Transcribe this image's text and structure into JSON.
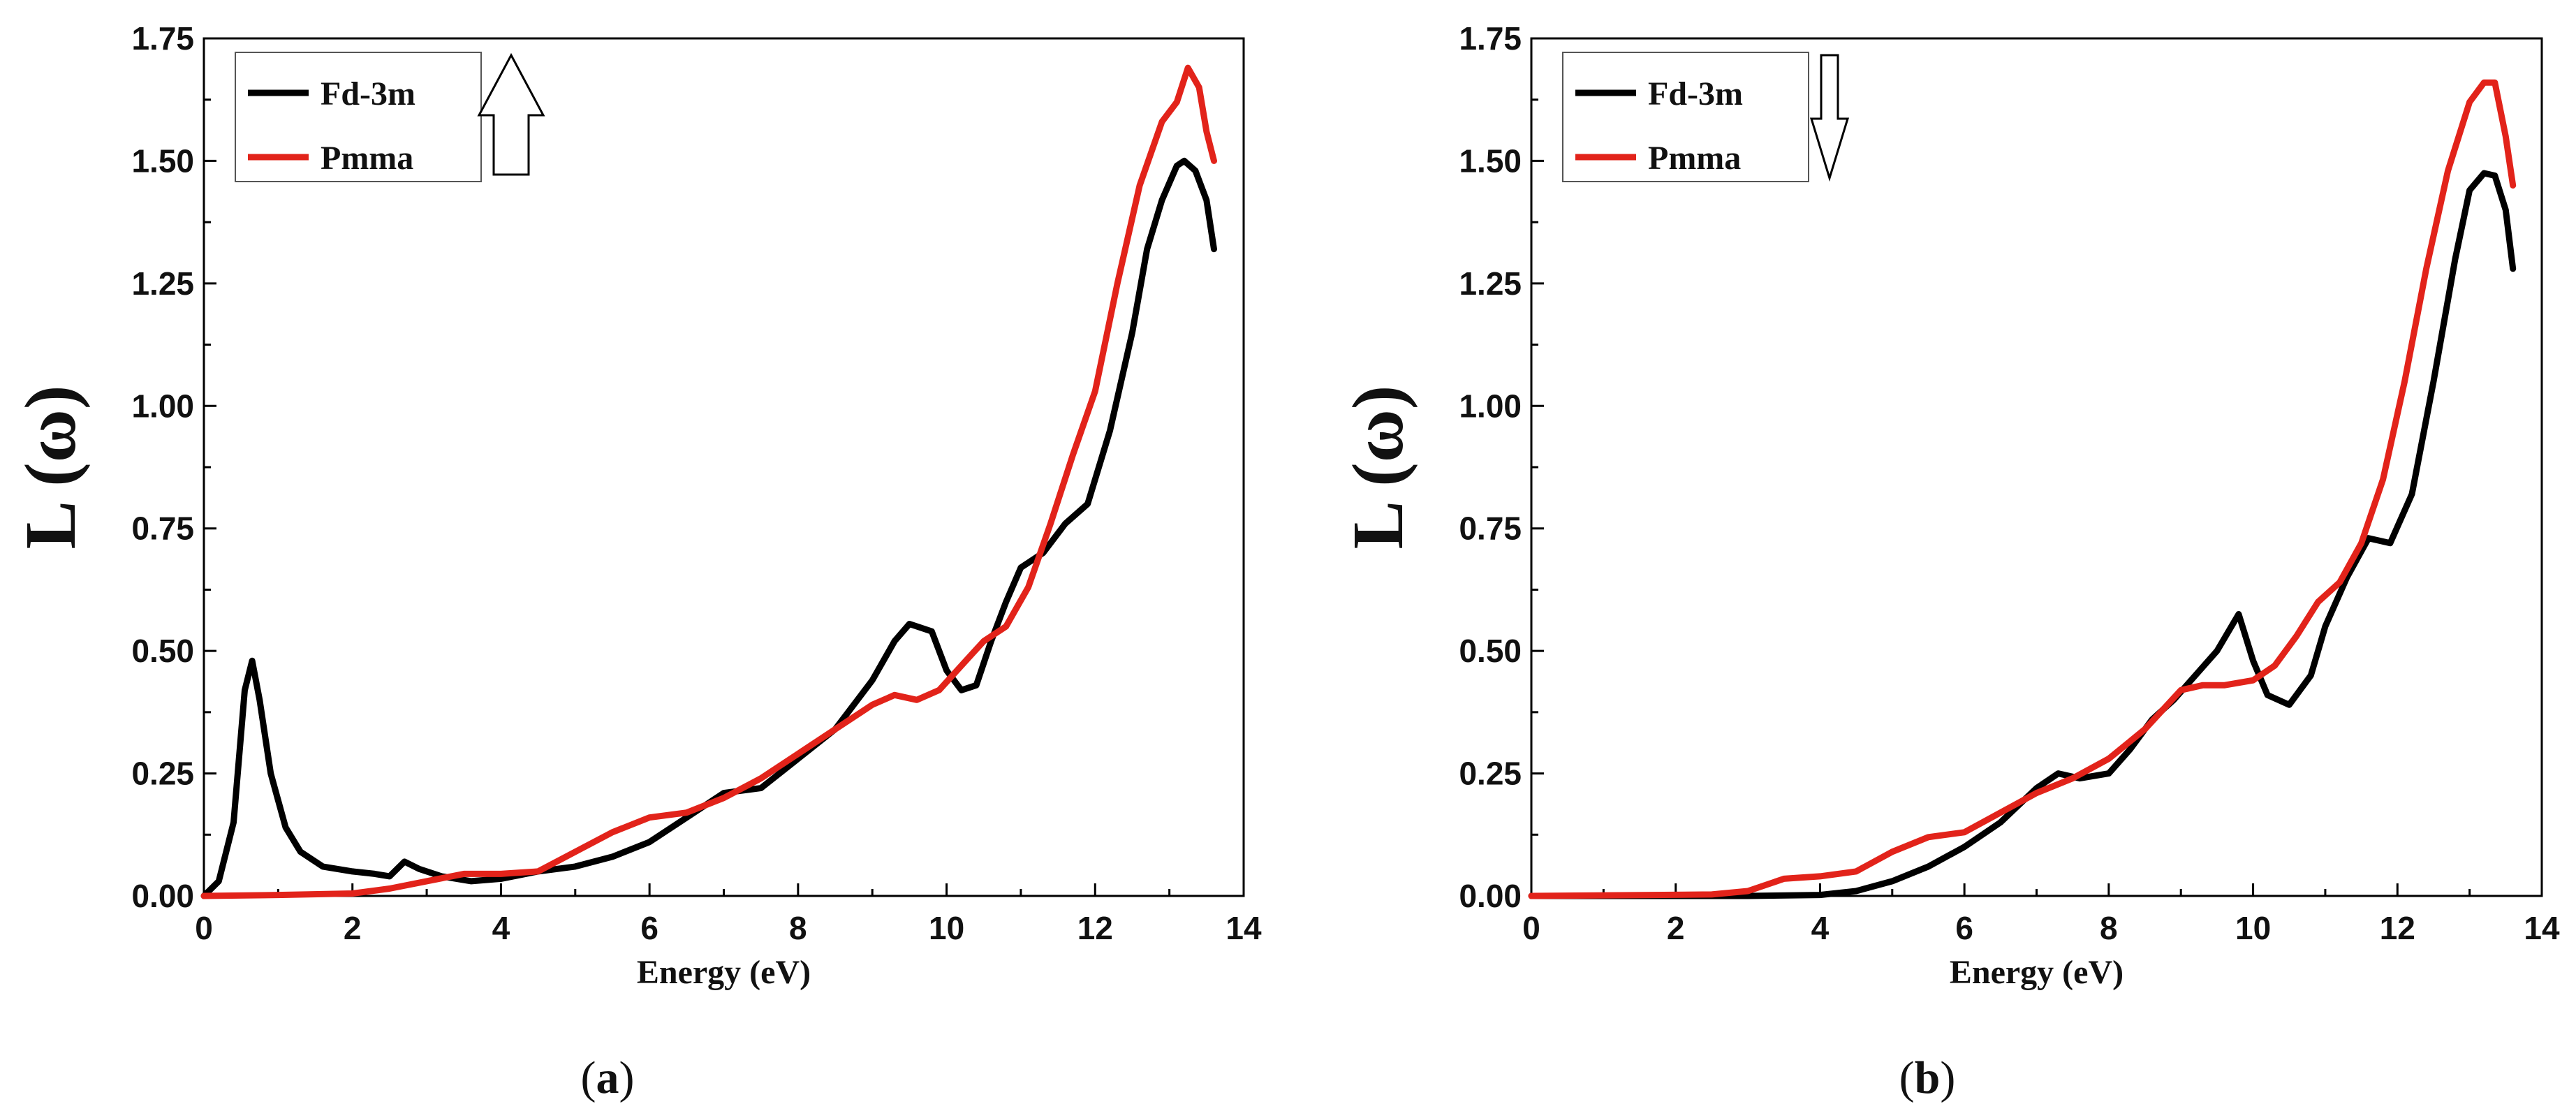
{
  "chart_data": [
    {
      "type": "line",
      "panel": "a",
      "caption_prefix": "(",
      "caption_letter": "a",
      "caption_suffix": ")",
      "xlabel": "Energy (eV)",
      "ylabel": "L (ω)",
      "xlim": [
        0,
        14
      ],
      "ylim": [
        0,
        1.75
      ],
      "xticks": [
        0,
        2,
        4,
        6,
        8,
        10,
        12,
        14
      ],
      "yticks": [
        "0.00",
        "0.25",
        "0.50",
        "0.75",
        "1.00",
        "1.25",
        "1.50",
        "1.75"
      ],
      "legend_position": "top-left",
      "arrow": "up",
      "series": [
        {
          "name": "Fd-3m",
          "color": "#000000",
          "points": [
            [
              0,
              0
            ],
            [
              0.2,
              0.03
            ],
            [
              0.4,
              0.15
            ],
            [
              0.55,
              0.42
            ],
            [
              0.65,
              0.48
            ],
            [
              0.75,
              0.4
            ],
            [
              0.9,
              0.25
            ],
            [
              1.1,
              0.14
            ],
            [
              1.3,
              0.09
            ],
            [
              1.6,
              0.06
            ],
            [
              2.0,
              0.05
            ],
            [
              2.3,
              0.045
            ],
            [
              2.5,
              0.04
            ],
            [
              2.7,
              0.07
            ],
            [
              2.9,
              0.055
            ],
            [
              3.2,
              0.04
            ],
            [
              3.6,
              0.03
            ],
            [
              4.0,
              0.035
            ],
            [
              4.5,
              0.05
            ],
            [
              5.0,
              0.06
            ],
            [
              5.5,
              0.08
            ],
            [
              6.0,
              0.11
            ],
            [
              6.5,
              0.16
            ],
            [
              7.0,
              0.21
            ],
            [
              7.5,
              0.22
            ],
            [
              8.0,
              0.28
            ],
            [
              8.5,
              0.34
            ],
            [
              8.8,
              0.4
            ],
            [
              9.0,
              0.44
            ],
            [
              9.3,
              0.52
            ],
            [
              9.5,
              0.555
            ],
            [
              9.8,
              0.54
            ],
            [
              10.0,
              0.46
            ],
            [
              10.2,
              0.42
            ],
            [
              10.4,
              0.43
            ],
            [
              10.6,
              0.52
            ],
            [
              10.8,
              0.6
            ],
            [
              11.0,
              0.67
            ],
            [
              11.3,
              0.7
            ],
            [
              11.6,
              0.76
            ],
            [
              11.9,
              0.8
            ],
            [
              12.2,
              0.95
            ],
            [
              12.5,
              1.15
            ],
            [
              12.7,
              1.32
            ],
            [
              12.9,
              1.42
            ],
            [
              13.1,
              1.49
            ],
            [
              13.2,
              1.5
            ],
            [
              13.35,
              1.48
            ],
            [
              13.5,
              1.42
            ],
            [
              13.6,
              1.32
            ]
          ]
        },
        {
          "name": "Pmma",
          "color": "#e2231a",
          "points": [
            [
              0,
              0
            ],
            [
              1.0,
              0.002
            ],
            [
              2.0,
              0.005
            ],
            [
              2.5,
              0.015
            ],
            [
              3.0,
              0.03
            ],
            [
              3.5,
              0.045
            ],
            [
              4.0,
              0.045
            ],
            [
              4.5,
              0.05
            ],
            [
              5.0,
              0.09
            ],
            [
              5.5,
              0.13
            ],
            [
              6.0,
              0.16
            ],
            [
              6.5,
              0.17
            ],
            [
              7.0,
              0.2
            ],
            [
              7.5,
              0.24
            ],
            [
              8.0,
              0.29
            ],
            [
              8.5,
              0.34
            ],
            [
              9.0,
              0.39
            ],
            [
              9.3,
              0.41
            ],
            [
              9.6,
              0.4
            ],
            [
              9.9,
              0.42
            ],
            [
              10.2,
              0.47
            ],
            [
              10.5,
              0.52
            ],
            [
              10.8,
              0.55
            ],
            [
              11.1,
              0.63
            ],
            [
              11.4,
              0.76
            ],
            [
              11.7,
              0.9
            ],
            [
              12.0,
              1.03
            ],
            [
              12.3,
              1.25
            ],
            [
              12.6,
              1.45
            ],
            [
              12.9,
              1.58
            ],
            [
              13.1,
              1.62
            ],
            [
              13.25,
              1.69
            ],
            [
              13.4,
              1.65
            ],
            [
              13.5,
              1.56
            ],
            [
              13.6,
              1.5
            ]
          ]
        }
      ]
    },
    {
      "type": "line",
      "panel": "b",
      "caption_prefix": "(",
      "caption_letter": "b",
      "caption_suffix": ")",
      "xlabel": "Energy (eV)",
      "ylabel": "L (ω)",
      "xlim": [
        0,
        14
      ],
      "ylim": [
        0,
        1.75
      ],
      "xticks": [
        0,
        2,
        4,
        6,
        8,
        10,
        12,
        14
      ],
      "yticks": [
        "0.00",
        "0.25",
        "0.50",
        "0.75",
        "1.00",
        "1.25",
        "1.50",
        "1.75"
      ],
      "legend_position": "top-left",
      "arrow": "down",
      "series": [
        {
          "name": "Fd-3m",
          "color": "#000000",
          "points": [
            [
              0,
              0
            ],
            [
              3.0,
              0
            ],
            [
              4.0,
              0.002
            ],
            [
              4.5,
              0.01
            ],
            [
              5.0,
              0.03
            ],
            [
              5.5,
              0.06
            ],
            [
              6.0,
              0.1
            ],
            [
              6.5,
              0.15
            ],
            [
              7.0,
              0.22
            ],
            [
              7.3,
              0.25
            ],
            [
              7.6,
              0.24
            ],
            [
              8.0,
              0.25
            ],
            [
              8.3,
              0.3
            ],
            [
              8.6,
              0.36
            ],
            [
              8.9,
              0.4
            ],
            [
              9.2,
              0.45
            ],
            [
              9.5,
              0.5
            ],
            [
              9.8,
              0.575
            ],
            [
              10.0,
              0.48
            ],
            [
              10.2,
              0.41
            ],
            [
              10.5,
              0.39
            ],
            [
              10.8,
              0.45
            ],
            [
              11.0,
              0.55
            ],
            [
              11.3,
              0.65
            ],
            [
              11.6,
              0.73
            ],
            [
              11.9,
              0.72
            ],
            [
              12.2,
              0.82
            ],
            [
              12.5,
              1.05
            ],
            [
              12.8,
              1.3
            ],
            [
              13.0,
              1.44
            ],
            [
              13.2,
              1.475
            ],
            [
              13.35,
              1.47
            ],
            [
              13.5,
              1.4
            ],
            [
              13.6,
              1.28
            ]
          ]
        },
        {
          "name": "Pmma",
          "color": "#e2231a",
          "points": [
            [
              0,
              0
            ],
            [
              2.5,
              0.003
            ],
            [
              3.0,
              0.01
            ],
            [
              3.5,
              0.035
            ],
            [
              4.0,
              0.04
            ],
            [
              4.5,
              0.05
            ],
            [
              5.0,
              0.09
            ],
            [
              5.5,
              0.12
            ],
            [
              6.0,
              0.13
            ],
            [
              6.5,
              0.17
            ],
            [
              7.0,
              0.21
            ],
            [
              7.5,
              0.24
            ],
            [
              8.0,
              0.28
            ],
            [
              8.5,
              0.34
            ],
            [
              9.0,
              0.42
            ],
            [
              9.3,
              0.43
            ],
            [
              9.6,
              0.43
            ],
            [
              10.0,
              0.44
            ],
            [
              10.3,
              0.47
            ],
            [
              10.6,
              0.53
            ],
            [
              10.9,
              0.6
            ],
            [
              11.2,
              0.64
            ],
            [
              11.5,
              0.72
            ],
            [
              11.8,
              0.85
            ],
            [
              12.1,
              1.05
            ],
            [
              12.4,
              1.28
            ],
            [
              12.7,
              1.48
            ],
            [
              13.0,
              1.62
            ],
            [
              13.2,
              1.66
            ],
            [
              13.35,
              1.66
            ],
            [
              13.5,
              1.55
            ],
            [
              13.6,
              1.45
            ]
          ]
        }
      ]
    }
  ]
}
